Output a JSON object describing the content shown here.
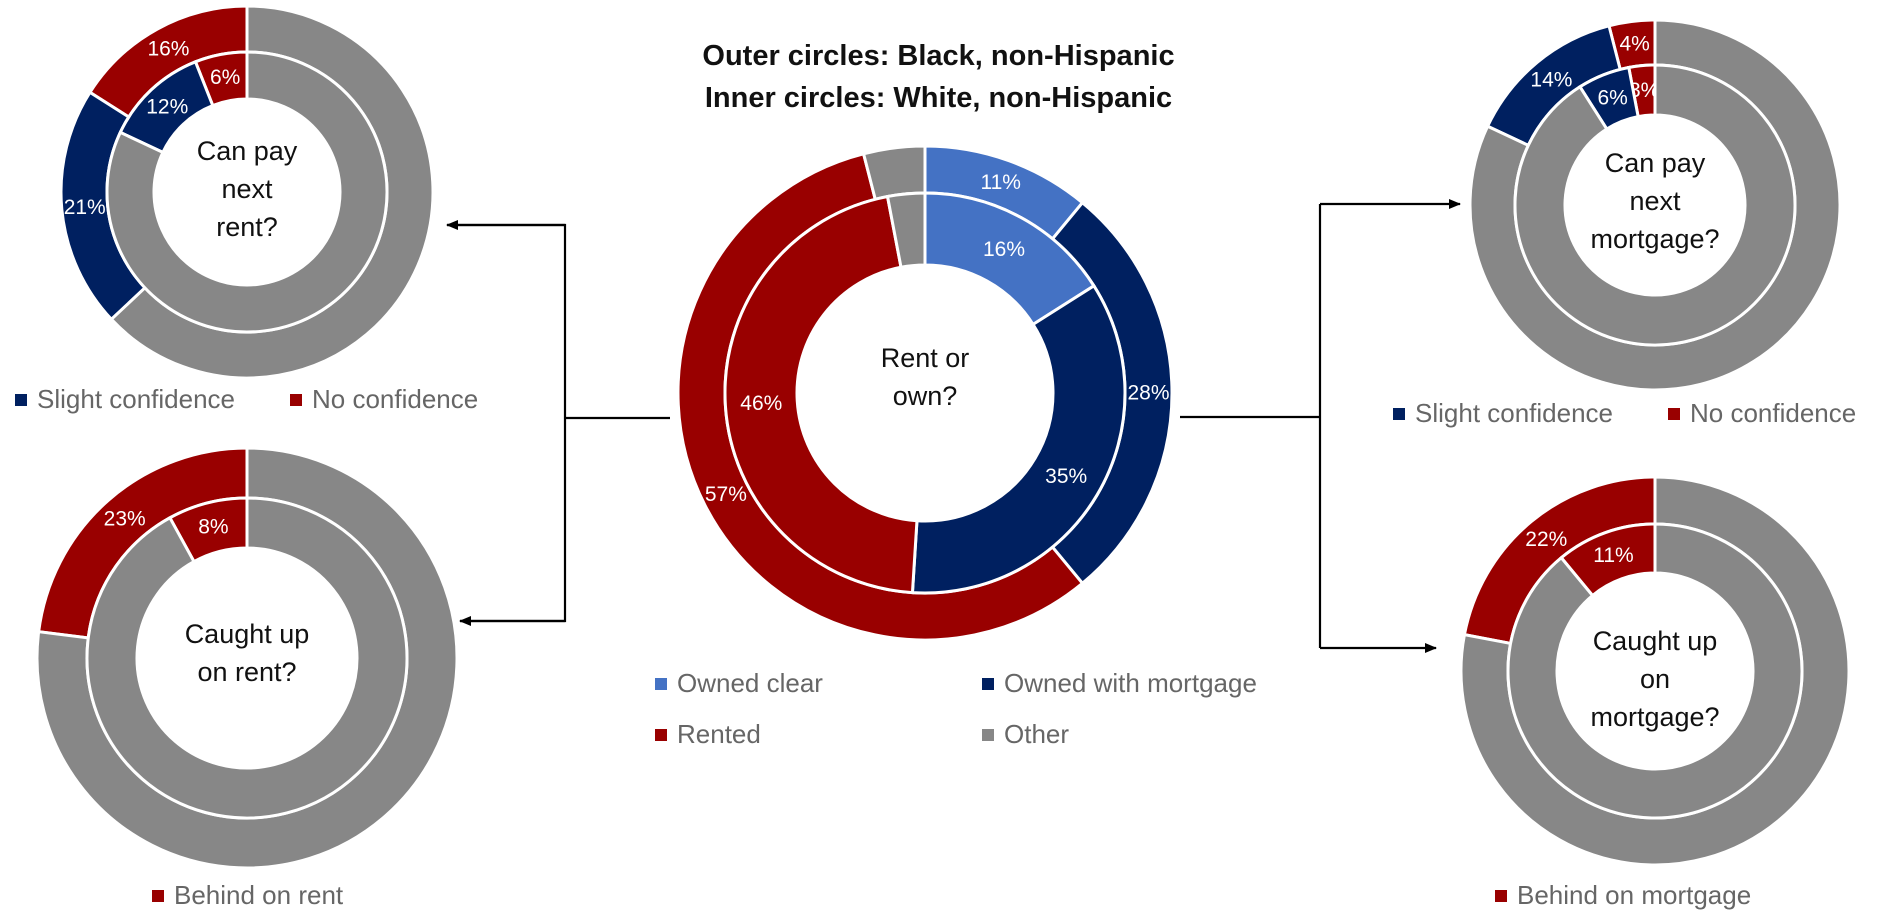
{
  "title": {
    "line1": "Outer circles: Black, non-Hispanic",
    "line2": "Inner circles: White, non-Hispanic"
  },
  "colors": {
    "owned_clear": "#4472C4",
    "navy": "#002060",
    "red": "#990000",
    "gray": "#878787"
  },
  "chart_data": [
    {
      "id": "rent_or_own",
      "type": "donut",
      "center_label": [
        "Rent or",
        "own?"
      ],
      "categories": [
        "Owned clear",
        "Owned with mortgage",
        "Rented",
        "Other"
      ],
      "series": [
        {
          "ring": "outer",
          "values": [
            11,
            28,
            57,
            4
          ],
          "labels": [
            "11%",
            "28%",
            "57%",
            ""
          ]
        },
        {
          "ring": "inner",
          "values": [
            16,
            35,
            46,
            3
          ],
          "labels": [
            "16%",
            "35%",
            "46%",
            ""
          ]
        }
      ]
    },
    {
      "id": "can_pay_rent",
      "type": "donut",
      "center_label": [
        "Can pay",
        "next",
        "rent?"
      ],
      "categories": [
        "No confidence",
        "Slight confidence",
        "Other"
      ],
      "series": [
        {
          "ring": "outer",
          "values": [
            16,
            21,
            63
          ],
          "labels": [
            "16%",
            "21%",
            ""
          ]
        },
        {
          "ring": "inner",
          "values": [
            6,
            12,
            82
          ],
          "labels": [
            "6%",
            "12%",
            ""
          ]
        }
      ]
    },
    {
      "id": "caught_up_rent",
      "type": "donut",
      "center_label": [
        "Caught up",
        "on rent?"
      ],
      "categories": [
        "Behind on rent",
        "Other"
      ],
      "series": [
        {
          "ring": "outer",
          "values": [
            23,
            77
          ],
          "labels": [
            "23%",
            ""
          ]
        },
        {
          "ring": "inner",
          "values": [
            8,
            92
          ],
          "labels": [
            "8%",
            ""
          ]
        }
      ]
    },
    {
      "id": "can_pay_mortgage",
      "type": "donut",
      "center_label": [
        "Can pay",
        "next",
        "mortgage?"
      ],
      "categories": [
        "No confidence",
        "Slight confidence",
        "Other"
      ],
      "series": [
        {
          "ring": "outer",
          "values": [
            4,
            14,
            82
          ],
          "labels": [
            "4%",
            "14%",
            ""
          ]
        },
        {
          "ring": "inner",
          "values": [
            3,
            6,
            91
          ],
          "labels": [
            "3%",
            "6%",
            ""
          ]
        }
      ]
    },
    {
      "id": "caught_up_mortgage",
      "type": "donut",
      "center_label": [
        "Caught up",
        "on",
        "mortgage?"
      ],
      "categories": [
        "Behind on mortgage",
        "Other"
      ],
      "series": [
        {
          "ring": "outer",
          "values": [
            22,
            78
          ],
          "labels": [
            "22%",
            ""
          ]
        },
        {
          "ring": "inner",
          "values": [
            11,
            89
          ],
          "labels": [
            "11%",
            ""
          ]
        }
      ]
    }
  ],
  "legends": {
    "rent_confidence": [
      "Slight confidence",
      "No confidence"
    ],
    "mortgage_confidence": [
      "Slight confidence",
      "No confidence"
    ],
    "main": [
      "Owned clear",
      "Owned with mortgage",
      "Rented",
      "Other"
    ],
    "rent_behind": [
      "Behind on rent"
    ],
    "mortgage_behind": [
      "Behind on mortgage"
    ]
  }
}
